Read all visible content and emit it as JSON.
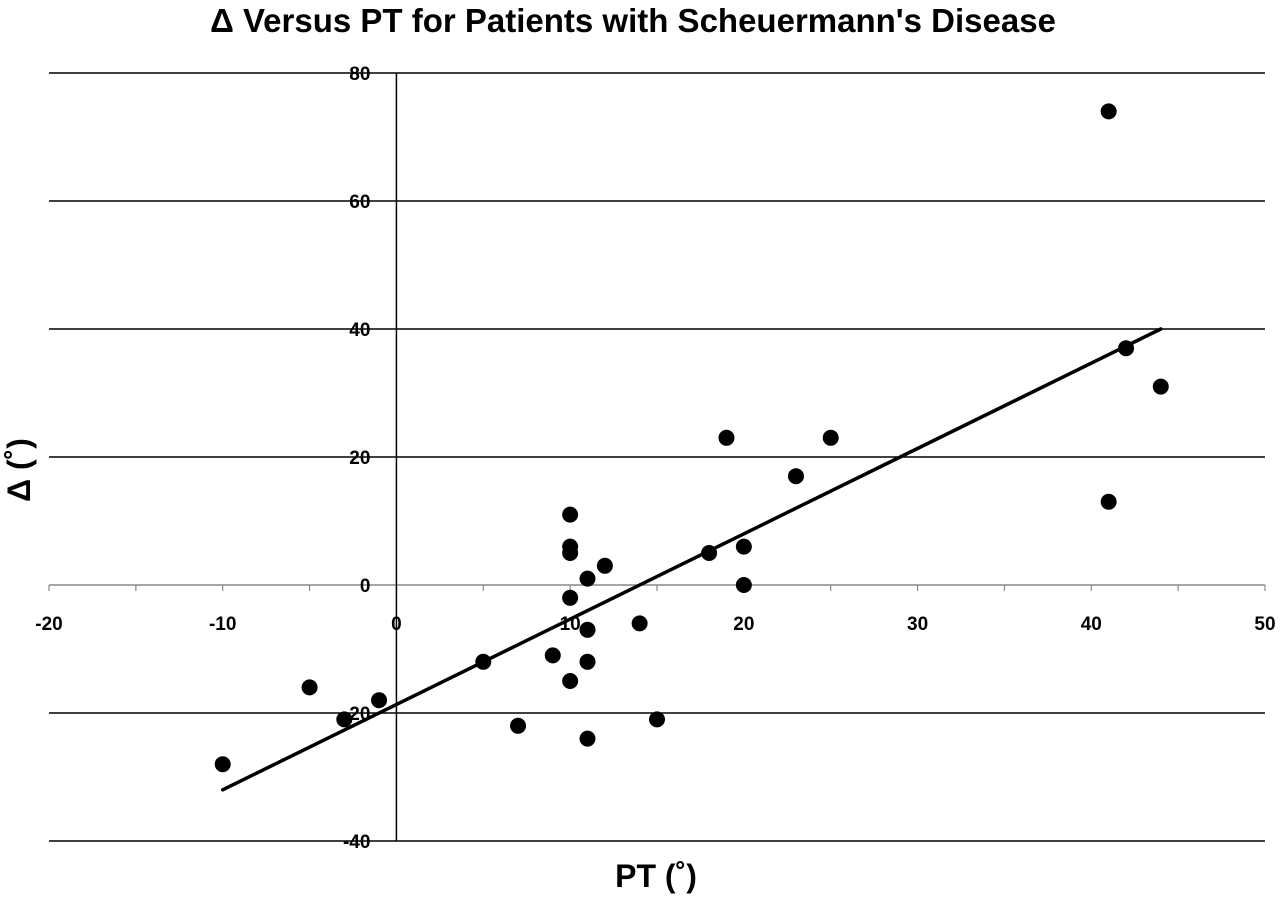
{
  "chart_data": {
    "type": "scatter",
    "title": "Δ Versus PT for Patients with Scheuermann's Disease",
    "xlabel": "PT (˚)",
    "ylabel": "Δ (˚)",
    "xlim": [
      -20,
      50
    ],
    "ylim": [
      -40,
      80
    ],
    "x_ticks": [
      -20,
      -10,
      0,
      10,
      20,
      30,
      40,
      50
    ],
    "y_ticks": [
      -40,
      -20,
      0,
      20,
      40,
      60,
      80
    ],
    "grid": "horizontal",
    "points": [
      {
        "x": -10,
        "y": -28
      },
      {
        "x": -5,
        "y": -16
      },
      {
        "x": -3,
        "y": -21
      },
      {
        "x": -1,
        "y": -18
      },
      {
        "x": 5,
        "y": -12
      },
      {
        "x": 7,
        "y": -22
      },
      {
        "x": 9,
        "y": -11
      },
      {
        "x": 10,
        "y": 11
      },
      {
        "x": 10,
        "y": 6
      },
      {
        "x": 10,
        "y": 5
      },
      {
        "x": 10,
        "y": -2
      },
      {
        "x": 10,
        "y": -15
      },
      {
        "x": 11,
        "y": 1
      },
      {
        "x": 11,
        "y": -7
      },
      {
        "x": 11,
        "y": -12
      },
      {
        "x": 11,
        "y": -24
      },
      {
        "x": 12,
        "y": 3
      },
      {
        "x": 14,
        "y": -6
      },
      {
        "x": 15,
        "y": -21
      },
      {
        "x": 18,
        "y": 5
      },
      {
        "x": 19,
        "y": 23
      },
      {
        "x": 20,
        "y": 6
      },
      {
        "x": 20,
        "y": 0
      },
      {
        "x": 23,
        "y": 17
      },
      {
        "x": 25,
        "y": 23
      },
      {
        "x": 41,
        "y": 74
      },
      {
        "x": 41,
        "y": 13
      },
      {
        "x": 42,
        "y": 37
      },
      {
        "x": 44,
        "y": 31
      }
    ],
    "trendline": {
      "x": [
        -10,
        44
      ],
      "y": [
        -32,
        40
      ]
    },
    "colors": {
      "points": "#000000",
      "trendline": "#000000",
      "grid": "#000000"
    }
  }
}
